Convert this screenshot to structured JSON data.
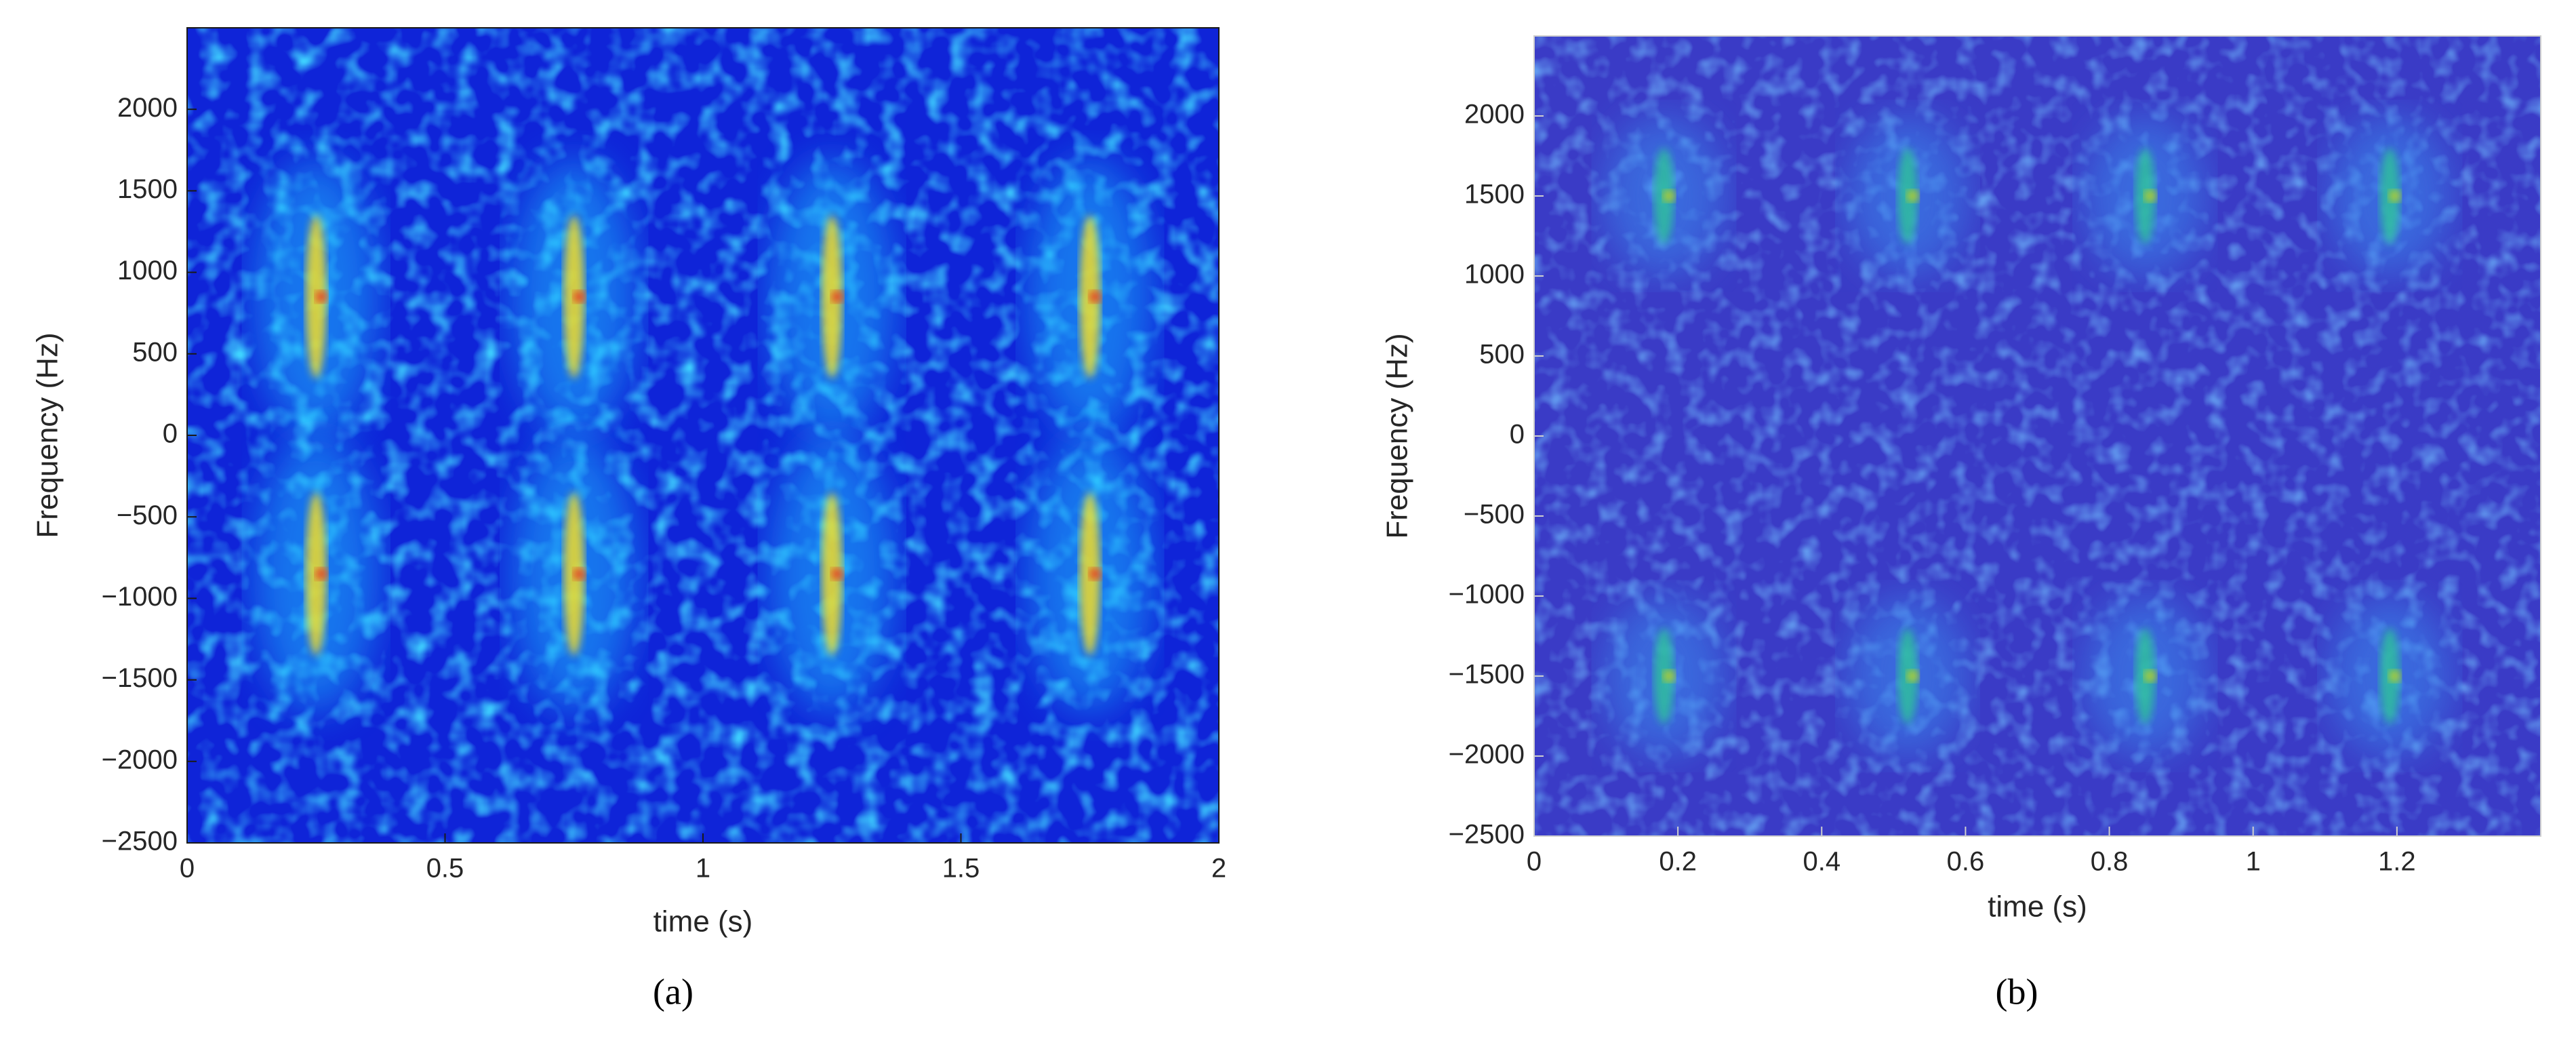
{
  "chart_data": [
    {
      "type": "heatmap",
      "colormap": "jet",
      "caption": "(a)",
      "xlabel": "time (s)",
      "ylabel": "Frequency (Hz)",
      "xlim": [
        0,
        2
      ],
      "ylim": [
        -2500,
        2500
      ],
      "xticks": [
        0,
        0.5,
        1,
        1.5,
        2
      ],
      "yticks": [
        {
          "value": -2500,
          "label": "−2500"
        },
        {
          "value": -2000,
          "label": "−2000"
        },
        {
          "value": -1500,
          "label": "−1500"
        },
        {
          "value": -1000,
          "label": "−1000"
        },
        {
          "value": -500,
          "label": "−500"
        },
        0,
        500,
        1000,
        1500,
        2000
      ]
    },
    {
      "type": "heatmap",
      "colormap": "parula",
      "caption": "(b)",
      "xlabel": "time (s)",
      "ylabel": "Frequency (Hz)",
      "xlim": [
        0,
        1.4
      ],
      "ylim": [
        -2500,
        2500
      ],
      "xticks": [
        0,
        0.2,
        0.4,
        0.6,
        0.8,
        1,
        1.2
      ],
      "yticks": [
        {
          "value": -2500,
          "label": "−2500"
        },
        {
          "value": -2000,
          "label": "−2000"
        },
        {
          "value": -1500,
          "label": "−1500"
        },
        {
          "value": -1000,
          "label": "−1000"
        },
        {
          "value": -500,
          "label": "−500"
        },
        0,
        500,
        1000,
        1500,
        2000
      ]
    }
  ]
}
